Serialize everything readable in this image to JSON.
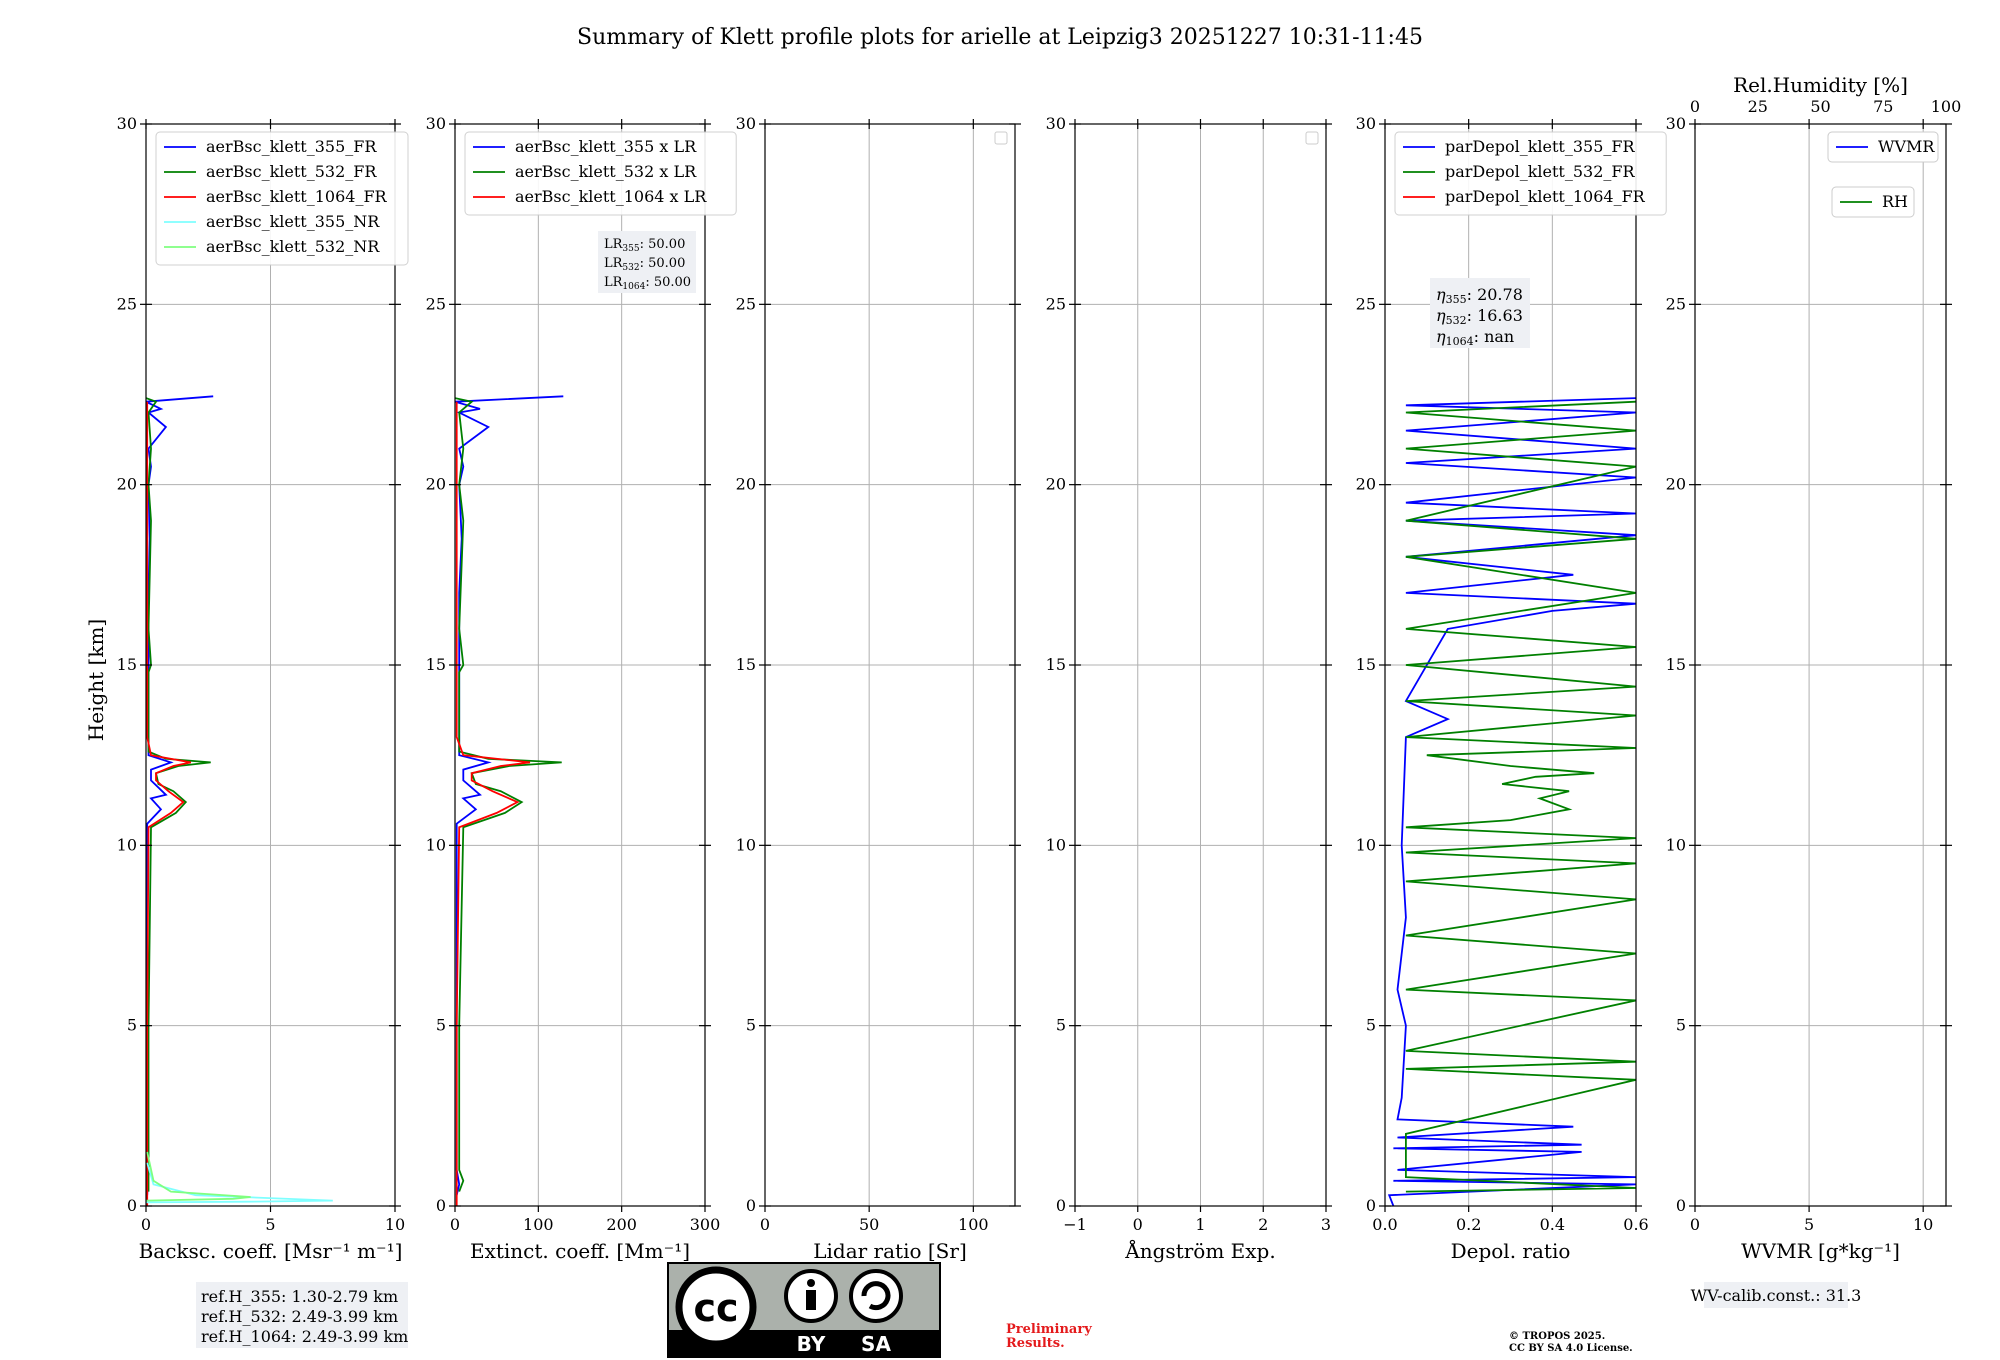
{
  "title": "Summary of Klett profile plots for arielle at Leipzig3 20251227 10:31-11:45",
  "ylabel": "Height [km]",
  "ylim": [
    0,
    30
  ],
  "yticks": [
    "0",
    "5",
    "10",
    "15",
    "20",
    "25",
    "30"
  ],
  "colors": {
    "blue": "#0000ff",
    "green": "#008000",
    "red": "#ff0000",
    "cyan": "#7fffff",
    "lightgreen": "#7fff7f",
    "grid": "#b0b0b0",
    "boxbg": "#eef0f4",
    "prelim": "#e41a1c"
  },
  "chart_data": [
    {
      "type": "line",
      "id": "bsc",
      "xlabel": "Backsc. coeff. [Msr⁻¹ m⁻¹]",
      "xlim": [
        0,
        10
      ],
      "xticks": [
        "0",
        "5",
        "10"
      ],
      "legend": [
        "aerBsc_klett_355_FR",
        "aerBsc_klett_532_FR",
        "aerBsc_klett_1064_FR",
        "aerBsc_klett_355_NR",
        "aerBsc_klett_532_NR"
      ],
      "series": [
        {
          "name": "aerBsc_klett_355_FR",
          "color": "blue",
          "points": [
            [
              0.05,
              0.3
            ],
            [
              0.1,
              1
            ],
            [
              0.05,
              5
            ],
            [
              0.05,
              10.6
            ],
            [
              0.6,
              11.0
            ],
            [
              0.2,
              11.3
            ],
            [
              0.8,
              11.4
            ],
            [
              0.2,
              11.8
            ],
            [
              0.2,
              12.1
            ],
            [
              1.0,
              12.3
            ],
            [
              0.1,
              12.5
            ],
            [
              0.1,
              14
            ],
            [
              0.1,
              17
            ],
            [
              0.15,
              18.5
            ],
            [
              0.1,
              20
            ],
            [
              0.2,
              20.5
            ],
            [
              0.1,
              21
            ],
            [
              0.8,
              21.6
            ],
            [
              0.1,
              22.0
            ],
            [
              0.6,
              22.1
            ],
            [
              0,
              22.3
            ],
            [
              2.7,
              22.45
            ]
          ]
        },
        {
          "name": "aerBsc_klett_532_FR",
          "color": "green",
          "points": [
            [
              0.1,
              0.4
            ],
            [
              0.1,
              5
            ],
            [
              0.2,
              10.5
            ],
            [
              1.2,
              10.9
            ],
            [
              1.6,
              11.2
            ],
            [
              1.1,
              11.5
            ],
            [
              0.5,
              11.7
            ],
            [
              0.4,
              12.0
            ],
            [
              1.3,
              12.2
            ],
            [
              2.6,
              12.3
            ],
            [
              0.8,
              12.4
            ],
            [
              0.1,
              12.6
            ],
            [
              0.1,
              14.8
            ],
            [
              0.2,
              15.0
            ],
            [
              0.1,
              16
            ],
            [
              0.2,
              19
            ],
            [
              0.1,
              20
            ],
            [
              0.2,
              21
            ],
            [
              0.1,
              22
            ],
            [
              0.4,
              22.3
            ],
            [
              0,
              22.4
            ]
          ]
        },
        {
          "name": "aerBsc_klett_1064_FR",
          "color": "red",
          "points": [
            [
              0.05,
              0
            ],
            [
              0.05,
              5
            ],
            [
              0.1,
              10.5
            ],
            [
              1.0,
              10.9
            ],
            [
              1.5,
              11.2
            ],
            [
              0.9,
              11.5
            ],
            [
              0.4,
              11.8
            ],
            [
              0.4,
              12.0
            ],
            [
              1.1,
              12.2
            ],
            [
              1.8,
              12.3
            ],
            [
              0.2,
              12.5
            ],
            [
              0.05,
              13
            ],
            [
              0.05,
              22.3
            ]
          ]
        },
        {
          "name": "aerBsc_klett_355_NR",
          "color": "cyan",
          "points": [
            [
              0,
              0.1
            ],
            [
              4,
              0.12
            ],
            [
              7.5,
              0.15
            ],
            [
              2,
              0.3
            ],
            [
              0.3,
              0.6
            ],
            [
              0.05,
              1.2
            ]
          ]
        },
        {
          "name": "aerBsc_klett_532_NR",
          "color": "lightgreen",
          "points": [
            [
              0,
              0.15
            ],
            [
              3.5,
              0.2
            ],
            [
              4.2,
              0.25
            ],
            [
              1,
              0.4
            ],
            [
              0.3,
              0.7
            ],
            [
              0.05,
              1.5
            ]
          ]
        }
      ],
      "annotation": [
        "ref.H_355: 1.30-2.79 km",
        "ref.H_532: 2.49-3.99 km",
        "ref.H_1064: 2.49-3.99 km"
      ]
    },
    {
      "type": "line",
      "id": "ext",
      "xlabel": "Extinct. coeff. [Mm⁻¹]",
      "xlim": [
        0,
        300
      ],
      "xticks": [
        "0",
        "100",
        "200",
        "300"
      ],
      "legend": [
        "aerBsc_klett_355 x LR",
        "aerBsc_klett_532 x LR",
        "aerBsc_klett_1064 x LR"
      ],
      "lr_labels": [
        "LR",
        "LR",
        "LR"
      ],
      "lr_subs": [
        "355",
        "532",
        "1064"
      ],
      "lr_values": [
        ": 50.00",
        ": 50.00",
        ": 50.00"
      ],
      "series": [
        {
          "name": "aerBsc_klett_355 x LR",
          "color": "blue",
          "points": [
            [
              2,
              0.3
            ],
            [
              5,
              0.6
            ],
            [
              2,
              1
            ],
            [
              2,
              10.6
            ],
            [
              25,
              11.0
            ],
            [
              10,
              11.3
            ],
            [
              30,
              11.4
            ],
            [
              10,
              11.8
            ],
            [
              10,
              12.1
            ],
            [
              40,
              12.3
            ],
            [
              5,
              12.5
            ],
            [
              5,
              17
            ],
            [
              8,
              18.5
            ],
            [
              5,
              20
            ],
            [
              10,
              20.5
            ],
            [
              5,
              21
            ],
            [
              40,
              21.6
            ],
            [
              5,
              22.0
            ],
            [
              30,
              22.1
            ],
            [
              0,
              22.3
            ],
            [
              130,
              22.45
            ]
          ]
        },
        {
          "name": "aerBsc_klett_532 x LR",
          "color": "green",
          "points": [
            [
              5,
              0.4
            ],
            [
              10,
              0.7
            ],
            [
              5,
              1
            ],
            [
              5,
              5
            ],
            [
              10,
              10.5
            ],
            [
              60,
              10.9
            ],
            [
              80,
              11.2
            ],
            [
              55,
              11.5
            ],
            [
              25,
              11.7
            ],
            [
              20,
              12.0
            ],
            [
              65,
              12.2
            ],
            [
              128,
              12.3
            ],
            [
              40,
              12.4
            ],
            [
              5,
              12.6
            ],
            [
              5,
              14.8
            ],
            [
              10,
              15.0
            ],
            [
              5,
              16
            ],
            [
              10,
              19
            ],
            [
              5,
              20
            ],
            [
              10,
              21
            ],
            [
              5,
              22
            ],
            [
              20,
              22.3
            ],
            [
              0,
              22.4
            ]
          ]
        },
        {
          "name": "aerBsc_klett_1064 x LR",
          "color": "red",
          "points": [
            [
              2,
              0
            ],
            [
              2,
              5
            ],
            [
              5,
              10.5
            ],
            [
              50,
              10.9
            ],
            [
              75,
              11.2
            ],
            [
              45,
              11.5
            ],
            [
              20,
              11.8
            ],
            [
              20,
              12.0
            ],
            [
              55,
              12.2
            ],
            [
              90,
              12.3
            ],
            [
              10,
              12.5
            ],
            [
              2,
              13
            ],
            [
              2,
              22.3
            ]
          ]
        }
      ]
    },
    {
      "type": "line",
      "id": "lr",
      "xlabel": "Lidar ratio [Sr]",
      "xlim": [
        0,
        120
      ],
      "xticks": [
        "0",
        "50",
        "100"
      ],
      "series": []
    },
    {
      "type": "line",
      "id": "ang",
      "xlabel": "Ångström Exp.",
      "xlim": [
        -1,
        3
      ],
      "xticks": [
        "−1",
        "0",
        "1",
        "2",
        "3"
      ],
      "series": []
    },
    {
      "type": "line",
      "id": "dep",
      "xlabel": "Depol. ratio",
      "xlim": [
        0,
        0.6
      ],
      "xticks": [
        "0.0",
        "0.2",
        "0.4",
        "0.6"
      ],
      "legend": [
        "parDepol_klett_355_FR",
        "parDepol_klett_532_FR",
        "parDepol_klett_1064_FR"
      ],
      "eta_subs": [
        "355",
        "532",
        "1064"
      ],
      "eta_values": [
        ": 20.78",
        ": 16.63",
        ": nan"
      ],
      "series": [
        {
          "name": "parDepol_klett_355_FR",
          "color": "blue",
          "points": [
            [
              0.02,
              0
            ],
            [
              0.01,
              0.3
            ],
            [
              0.6,
              0.6
            ],
            [
              0.02,
              0.7
            ],
            [
              0.6,
              0.8
            ],
            [
              0.03,
              1.0
            ],
            [
              0.47,
              1.5
            ],
            [
              0.02,
              1.6
            ],
            [
              0.47,
              1.7
            ],
            [
              0.03,
              1.9
            ],
            [
              0.45,
              2.2
            ],
            [
              0.03,
              2.4
            ],
            [
              0.04,
              3
            ],
            [
              0.05,
              5
            ],
            [
              0.03,
              6
            ],
            [
              0.05,
              8
            ],
            [
              0.04,
              10
            ],
            [
              0.05,
              13
            ],
            [
              0.15,
              13.5
            ],
            [
              0.05,
              14
            ],
            [
              0.15,
              16
            ],
            [
              0.4,
              16.5
            ],
            [
              0.6,
              16.7
            ],
            [
              0.05,
              17
            ],
            [
              0.45,
              17.5
            ],
            [
              0.05,
              18
            ],
            [
              0.6,
              18.6
            ],
            [
              0.05,
              19
            ],
            [
              0.6,
              19.2
            ],
            [
              0.05,
              19.5
            ],
            [
              0.6,
              20.2
            ],
            [
              0.05,
              20.6
            ],
            [
              0.6,
              21.0
            ],
            [
              0.05,
              21.5
            ],
            [
              0.6,
              22.0
            ],
            [
              0.05,
              22.2
            ],
            [
              0.6,
              22.4
            ]
          ]
        },
        {
          "name": "parDepol_klett_532_FR",
          "color": "green",
          "points": [
            [
              0.05,
              0.4
            ],
            [
              0.6,
              0.5
            ],
            [
              0.05,
              0.8
            ],
            [
              0.05,
              2
            ],
            [
              0.6,
              3.5
            ],
            [
              0.05,
              3.8
            ],
            [
              0.6,
              4.0
            ],
            [
              0.05,
              4.3
            ],
            [
              0.6,
              5.7
            ],
            [
              0.05,
              6
            ],
            [
              0.6,
              7
            ],
            [
              0.05,
              7.5
            ],
            [
              0.6,
              8.5
            ],
            [
              0.05,
              9
            ],
            [
              0.6,
              9.5
            ],
            [
              0.05,
              9.8
            ],
            [
              0.6,
              10.2
            ],
            [
              0.05,
              10.5
            ],
            [
              0.3,
              10.7
            ],
            [
              0.44,
              11.0
            ],
            [
              0.37,
              11.3
            ],
            [
              0.44,
              11.5
            ],
            [
              0.28,
              11.7
            ],
            [
              0.36,
              11.9
            ],
            [
              0.5,
              12.0
            ],
            [
              0.3,
              12.2
            ],
            [
              0.1,
              12.5
            ],
            [
              0.6,
              12.7
            ],
            [
              0.05,
              13
            ],
            [
              0.6,
              13.6
            ],
            [
              0.05,
              14
            ],
            [
              0.6,
              14.4
            ],
            [
              0.05,
              15
            ],
            [
              0.6,
              15.5
            ],
            [
              0.05,
              16
            ],
            [
              0.6,
              17
            ],
            [
              0.05,
              18
            ],
            [
              0.6,
              18.5
            ],
            [
              0.05,
              19
            ],
            [
              0.6,
              20.5
            ],
            [
              0.05,
              21
            ],
            [
              0.6,
              21.5
            ],
            [
              0.05,
              22
            ],
            [
              0.6,
              22.3
            ]
          ]
        },
        {
          "name": "parDepol_klett_1064_FR",
          "color": "red",
          "points": []
        }
      ]
    },
    {
      "type": "line",
      "id": "wv",
      "xlabel": "WVMR [g*kg⁻¹]",
      "xlim": [
        0,
        11
      ],
      "xticks": [
        "0",
        "5",
        "10"
      ],
      "top_axis_label": "Rel.Humidity [%]",
      "top_xlim": [
        0,
        100
      ],
      "top_xticks": [
        "0",
        "25",
        "50",
        "75",
        "100"
      ],
      "legend": [
        "WVMR",
        "RH"
      ],
      "series": [],
      "annotation": [
        "WV-calib.const.: 31.3"
      ]
    }
  ],
  "footer": {
    "license_badge": {
      "cc": "cc",
      "by": "BY",
      "sa": "SA"
    },
    "preliminary": [
      "Preliminary",
      "Results."
    ],
    "copyright": [
      "© TROPOS 2025.",
      "CC BY SA 4.0 License."
    ]
  }
}
